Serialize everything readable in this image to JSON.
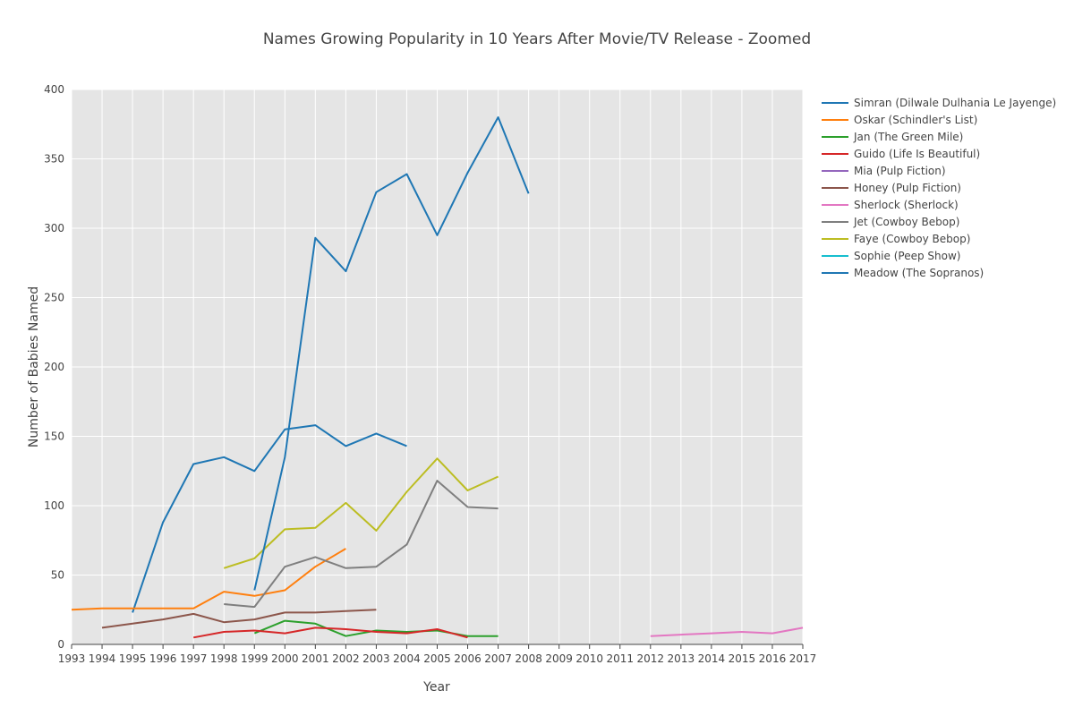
{
  "chart_data": {
    "type": "line",
    "title": "Names Growing Popularity in 10 Years After Movie/TV Release - Zoomed",
    "xlabel": "Year",
    "ylabel": "Number of Babies Named",
    "xlim": [
      1993,
      2017
    ],
    "ylim": [
      0,
      400
    ],
    "x_ticks": [
      1993,
      1994,
      1995,
      1996,
      1997,
      1998,
      1999,
      2000,
      2001,
      2002,
      2003,
      2004,
      2005,
      2006,
      2007,
      2008,
      2009,
      2010,
      2011,
      2012,
      2013,
      2014,
      2015,
      2016,
      2017
    ],
    "y_ticks": [
      0,
      50,
      100,
      150,
      200,
      250,
      300,
      350,
      400
    ],
    "grid": true,
    "legend_position": "right",
    "series": [
      {
        "name": "Simran (Dilwale Dulhania Le Jayenge)",
        "color": "#1f77b4",
        "x": [
          1995,
          1996,
          1997,
          1998,
          1999,
          2000,
          2001,
          2002,
          2003,
          2004
        ],
        "y": [
          23,
          88,
          130,
          135,
          125,
          155,
          158,
          143,
          152,
          143
        ]
      },
      {
        "name": "Oskar (Schindler's List)",
        "color": "#ff7f0e",
        "x": [
          1993,
          1994,
          1995,
          1996,
          1997,
          1998,
          1999,
          2000,
          2001,
          2002
        ],
        "y": [
          25,
          26,
          26,
          26,
          26,
          38,
          35,
          39,
          56,
          69
        ]
      },
      {
        "name": "Jan (The Green Mile)",
        "color": "#2ca02c",
        "x": [
          1999,
          2000,
          2001,
          2002,
          2003,
          2004,
          2005,
          2006,
          2007
        ],
        "y": [
          8,
          17,
          15,
          6,
          10,
          9,
          10,
          6,
          6
        ]
      },
      {
        "name": "Guido (Life Is Beautiful)",
        "color": "#d62728",
        "x": [
          1997,
          1998,
          1999,
          2000,
          2001,
          2002,
          2003,
          2004,
          2005,
          2006
        ],
        "y": [
          5,
          9,
          10,
          8,
          12,
          11,
          9,
          8,
          11,
          5
        ]
      },
      {
        "name": "Mia (Pulp Fiction)",
        "color": "#9467bd",
        "x": [],
        "y": []
      },
      {
        "name": "Honey (Pulp Fiction)",
        "color": "#8c564b",
        "x": [
          1994,
          1995,
          1996,
          1997,
          1998,
          1999,
          2000,
          2001,
          2002,
          2003
        ],
        "y": [
          12,
          15,
          18,
          22,
          16,
          18,
          23,
          23,
          24,
          25
        ]
      },
      {
        "name": "Sherlock (Sherlock)",
        "color": "#e377c2",
        "x": [
          2012,
          2013,
          2014,
          2015,
          2016,
          2017
        ],
        "y": [
          6,
          7,
          8,
          9,
          8,
          12
        ]
      },
      {
        "name": "Jet (Cowboy Bebop)",
        "color": "#7f7f7f",
        "x": [
          1998,
          1999,
          2000,
          2001,
          2002,
          2003,
          2004,
          2005,
          2006,
          2007
        ],
        "y": [
          29,
          27,
          56,
          63,
          55,
          56,
          72,
          118,
          99,
          98
        ]
      },
      {
        "name": "Faye (Cowboy Bebop)",
        "color": "#bcbd22",
        "x": [
          1998,
          1999,
          2000,
          2001,
          2002,
          2003,
          2004,
          2005,
          2006,
          2007
        ],
        "y": [
          55,
          62,
          83,
          84,
          102,
          82,
          110,
          134,
          111,
          121
        ]
      },
      {
        "name": "Sophie (Peep Show)",
        "color": "#17becf",
        "x": [],
        "y": []
      },
      {
        "name": "Meadow (The Sopranos)",
        "color": "#1f77b4",
        "x": [
          1999,
          2000,
          2001,
          2002,
          2003,
          2004,
          2005,
          2006,
          2007,
          2008
        ],
        "y": [
          39,
          135,
          293,
          269,
          326,
          339,
          295,
          340,
          380,
          325
        ]
      }
    ]
  }
}
